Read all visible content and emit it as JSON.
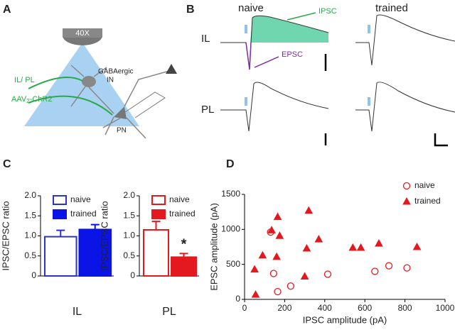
{
  "panels": [
    "A",
    "B",
    "C",
    "D"
  ],
  "diagram": {
    "objective": "40X",
    "interneuron": [
      "GABAergic",
      "IN"
    ],
    "input": "IL/ PL",
    "virus": [
      "AAV",
      "2",
      "-ChR2"
    ],
    "principal": "PN"
  },
  "traces": {
    "columns": [
      "naive",
      "trained"
    ],
    "rows": [
      "IL",
      "PL"
    ],
    "ipsc_label": "IPSC",
    "epsc_label": "EPSC"
  },
  "chart_data": [
    {
      "type": "bar",
      "ylabel": "IPSC/EPSC ratio",
      "xlabel": "IL",
      "ylim": [
        0,
        2
      ],
      "yticks": [
        0,
        0.5,
        {
          "value": 1,
          "label": "1.0"
        },
        1.5,
        {
          "value": 2,
          "label": "2.0"
        }
      ],
      "series": [
        {
          "name": "naive",
          "color": "#2a35c8",
          "filled": false,
          "values": [
            0.98
          ],
          "errors": [
            0.16
          ]
        },
        {
          "name": "trained",
          "color": "#0a14e6",
          "filled": true,
          "values": [
            1.16
          ],
          "errors": [
            0.12
          ]
        }
      ]
    },
    {
      "type": "bar",
      "ylabel": "IPSC/EPSC ratio",
      "xlabel": "PL",
      "ylim": [
        0,
        2
      ],
      "yticks": [
        0,
        0.5,
        {
          "value": 1,
          "label": "1.0"
        },
        1.5,
        {
          "value": 2,
          "label": "2.0"
        }
      ],
      "annotation": "*",
      "series": [
        {
          "name": "naive",
          "color": "#e3191f",
          "filled": false,
          "values": [
            1.15
          ],
          "errors": [
            0.21
          ]
        },
        {
          "name": "trained",
          "color": "#e3191f",
          "filled": true,
          "values": [
            0.47
          ],
          "errors": [
            0.09
          ]
        }
      ]
    },
    {
      "type": "scatter",
      "xlabel": "IPSC amplitude (pA)",
      "ylabel": "EPSC amplitude (pA)",
      "xlim": [
        0,
        1000
      ],
      "ylim": [
        0,
        1500
      ],
      "xticks": [
        0,
        200,
        400,
        600,
        800,
        1000
      ],
      "yticks": [
        0,
        500,
        1000,
        1500
      ],
      "series": [
        {
          "name": "naive",
          "color": "#e3191f",
          "marker": "circle",
          "filled": false,
          "x": [
            130,
            145,
            165,
            230,
            415,
            650,
            720,
            810
          ],
          "values": [
            960,
            370,
            110,
            190,
            360,
            400,
            480,
            450
          ]
        },
        {
          "name": "trained",
          "color": "#e3191f",
          "marker": "triangle",
          "filled": true,
          "x": [
            50,
            55,
            90,
            135,
            160,
            165,
            175,
            300,
            310,
            320,
            370,
            540,
            580,
            670,
            860
          ],
          "values": [
            430,
            70,
            630,
            990,
            610,
            1180,
            910,
            330,
            730,
            1270,
            860,
            740,
            740,
            800,
            750
          ]
        }
      ]
    }
  ]
}
